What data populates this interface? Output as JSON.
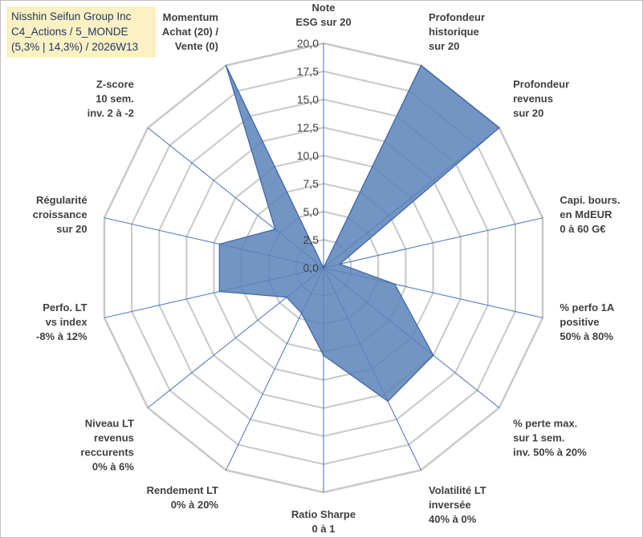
{
  "header": {
    "company": "Nisshin Seifun Group Inc",
    "line2": "C4_Actions / 5_MONDE",
    "line3": "(5,3% | 14,3%) / 2026W13"
  },
  "colors": {
    "fill": "#5a82b8",
    "stroke": "#3b64a8",
    "grid": "#c8c8c8",
    "spoke": "#4472c4",
    "title_bg": "#fdf0c2",
    "title_text": "#1f3864"
  },
  "chart_data": {
    "type": "radar",
    "title": "Nisshin Seifun Group Inc",
    "rmin": 0,
    "rmax": 20,
    "tick_step": 2.5,
    "tick_labels": [
      "0,0",
      "2,5",
      "5,0",
      "7,5",
      "10,0",
      "12,5",
      "15,0",
      "17,5",
      "20,0"
    ],
    "gridlines": true,
    "legend": "none",
    "axes": [
      {
        "lines": [
          "Note",
          "ESG sur 20"
        ]
      },
      {
        "lines": [
          "Profondeur",
          "historique",
          "sur 20"
        ]
      },
      {
        "lines": [
          "Profondeur",
          "revenus",
          "sur 20"
        ]
      },
      {
        "lines": [
          "Capi. bours.",
          "en MdEUR",
          "0 à 60 G€"
        ]
      },
      {
        "lines": [
          "% perfo 1A",
          "positive",
          "50% à 80%"
        ]
      },
      {
        "lines": [
          "% perte max.",
          "sur 1 sem.",
          "inv. 50% à 20%"
        ]
      },
      {
        "lines": [
          "Volatilité LT",
          "inversée",
          "40% à 0%"
        ]
      },
      {
        "lines": [
          "Ratio Sharpe",
          "0 à 1"
        ]
      },
      {
        "lines": [
          "Rendement LT",
          "0% à 20%"
        ]
      },
      {
        "lines": [
          "Niveau LT",
          "revenus",
          "reccurents",
          "0% à 6%"
        ]
      },
      {
        "lines": [
          "Perfo. LT",
          "vs index",
          "-8% à 12%"
        ]
      },
      {
        "lines": [
          "Régularité",
          "croissance",
          "sur 20"
        ]
      },
      {
        "lines": [
          "Z-score",
          "10 sem.",
          "inv. 2 à -2"
        ]
      },
      {
        "lines": [
          "Momentum",
          "Achat (20) /",
          "Vente (0)"
        ]
      }
    ],
    "series": [
      {
        "name": "Nisshin Seifun Group Inc",
        "values": [
          0,
          20,
          20,
          1.5,
          6.5,
          12.5,
          13.2,
          7.8,
          4.5,
          4.2,
          9.5,
          9.5,
          5.5,
          20
        ]
      }
    ]
  }
}
